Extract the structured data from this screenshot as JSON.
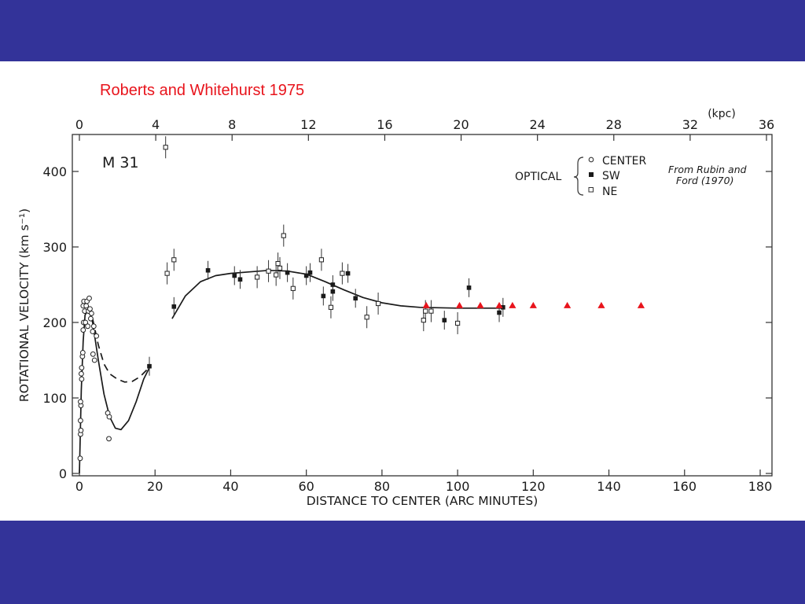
{
  "slide": {
    "title": "Roberts and Whitehurst 1975",
    "background_color": "#333399",
    "title_color": "#e8141c"
  },
  "chart_data": {
    "type": "scatter",
    "panel_label": "M 31",
    "xlabel": "DISTANCE TO CENTER (ARC MINUTES)",
    "ylabel": "ROTATIONAL VELOCITY (km s⁻¹)",
    "top_axis_label": "(kpc)",
    "xlim": [
      0,
      180
    ],
    "ylim": [
      0,
      450
    ],
    "x_ticks": [
      "0",
      "20",
      "40",
      "60",
      "80",
      "100",
      "120",
      "140",
      "160",
      "180"
    ],
    "y_ticks": [
      "0",
      "100",
      "200",
      "300",
      "400"
    ],
    "top_ticks": [
      "0",
      "4",
      "8",
      "12",
      "16",
      "20",
      "24",
      "28",
      "32",
      "36"
    ],
    "grid": false,
    "legend": {
      "group_label": "OPTICAL",
      "entries": [
        "CENTER",
        "SW",
        "NE"
      ],
      "citation_line1": "From Rubin and",
      "citation_line2": "Ford (1970)"
    },
    "series": [
      {
        "marker": "open-circle",
        "points": [
          [
            0.2,
            20
          ],
          [
            0.3,
            52
          ],
          [
            0.4,
            57
          ],
          [
            0.3,
            70
          ],
          [
            0.4,
            90
          ],
          [
            0.3,
            95
          ],
          [
            0.6,
            125
          ],
          [
            0.5,
            132
          ],
          [
            0.6,
            140
          ],
          [
            0.8,
            155
          ],
          [
            0.9,
            160
          ],
          [
            1.0,
            190
          ],
          [
            1.1,
            200
          ],
          [
            1.0,
            222
          ],
          [
            1.2,
            228
          ],
          [
            1.4,
            215
          ],
          [
            1.6,
            200
          ],
          [
            1.8,
            222
          ],
          [
            2.0,
            228
          ],
          [
            2.2,
            195
          ],
          [
            2.4,
            215
          ],
          [
            2.6,
            232
          ],
          [
            2.8,
            218
          ],
          [
            3.0,
            205
          ],
          [
            3.2,
            212
          ],
          [
            3.5,
            188
          ],
          [
            3.8,
            195
          ],
          [
            3.6,
            158
          ],
          [
            4.0,
            150
          ],
          [
            4.5,
            182
          ],
          [
            7.5,
            80
          ],
          [
            7.9,
            75
          ],
          [
            7.8,
            46
          ]
        ]
      },
      {
        "marker": "filled-square",
        "points": [
          [
            18.5,
            142
          ],
          [
            25.0,
            221
          ],
          [
            34.0,
            269
          ],
          [
            41.0,
            262
          ],
          [
            42.5,
            257
          ],
          [
            55.0,
            266
          ],
          [
            60.0,
            262
          ],
          [
            61.0,
            266
          ],
          [
            64.5,
            235
          ],
          [
            67.0,
            250
          ],
          [
            67.0,
            241
          ],
          [
            71.0,
            265
          ],
          [
            73.0,
            232
          ],
          [
            96.5,
            203
          ],
          [
            103.0,
            246
          ],
          [
            111.0,
            213
          ],
          [
            112.0,
            220
          ]
        ]
      },
      {
        "marker": "open-square",
        "points": [
          [
            22.8,
            432
          ],
          [
            23.2,
            265
          ],
          [
            25.0,
            283
          ],
          [
            47.0,
            260
          ],
          [
            50.0,
            268
          ],
          [
            52.0,
            263
          ],
          [
            52.5,
            278
          ],
          [
            53.0,
            272
          ],
          [
            54.0,
            315
          ],
          [
            56.5,
            245
          ],
          [
            64.0,
            283
          ],
          [
            66.5,
            220
          ],
          [
            69.5,
            265
          ],
          [
            76.0,
            207
          ],
          [
            79.0,
            225
          ],
          [
            91.0,
            203
          ],
          [
            91.5,
            215
          ],
          [
            93.0,
            215
          ],
          [
            100.0,
            199
          ]
        ]
      },
      {
        "marker": "red-triangle",
        "points": [
          [
            91.7,
            222
          ],
          [
            100.5,
            222
          ],
          [
            106.0,
            222
          ],
          [
            111.0,
            222
          ],
          [
            114.5,
            222
          ],
          [
            120.0,
            222
          ],
          [
            129.0,
            222
          ],
          [
            138.0,
            222
          ],
          [
            148.5,
            222
          ]
        ]
      }
    ],
    "curves": [
      {
        "style": "solid",
        "points": [
          [
            0,
            0
          ],
          [
            0.5,
            110
          ],
          [
            1,
            175
          ],
          [
            1.5,
            210
          ],
          [
            2.5,
            218
          ],
          [
            3.5,
            200
          ],
          [
            5,
            150
          ],
          [
            6.5,
            105
          ],
          [
            8,
            75
          ],
          [
            9.5,
            60
          ],
          [
            11,
            58
          ],
          [
            13,
            70
          ],
          [
            15,
            95
          ],
          [
            17,
            125
          ],
          [
            18.5,
            140
          ]
        ]
      },
      {
        "style": "dashed",
        "points": [
          [
            3.5,
            205
          ],
          [
            5,
            170
          ],
          [
            6.5,
            145
          ],
          [
            8,
            132
          ],
          [
            10,
            125
          ],
          [
            12,
            121
          ],
          [
            14,
            122
          ],
          [
            16,
            128
          ],
          [
            18,
            138
          ]
        ]
      },
      {
        "style": "solid",
        "points": [
          [
            24.5,
            205
          ],
          [
            28,
            235
          ],
          [
            32,
            254
          ],
          [
            36,
            262
          ],
          [
            40,
            265
          ],
          [
            45,
            267
          ],
          [
            50,
            269
          ],
          [
            55,
            268
          ],
          [
            60,
            264
          ],
          [
            65,
            254
          ],
          [
            70,
            243
          ],
          [
            75,
            233
          ],
          [
            80,
            226
          ],
          [
            85,
            222
          ],
          [
            90,
            220
          ],
          [
            100,
            219
          ],
          [
            112,
            219
          ]
        ]
      }
    ]
  }
}
